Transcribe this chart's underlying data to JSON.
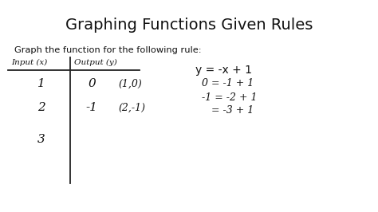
{
  "title": "Graphing Functions Given Rules",
  "subtitle": "Graph the function for the following rule:",
  "bg_color": "#ffffff",
  "table_header_left": "Input (x)",
  "table_header_right": "Output (y)",
  "col1": [
    "1",
    "2",
    "3"
  ],
  "col2": [
    "0",
    "-1"
  ],
  "col2_coords": [
    "(1,0)",
    "(2,-1)"
  ],
  "equation": "y = -x + 1",
  "steps": [
    "0 = -1 + 1",
    "-1 = -2 + 1",
    "   = -3 + 1"
  ]
}
